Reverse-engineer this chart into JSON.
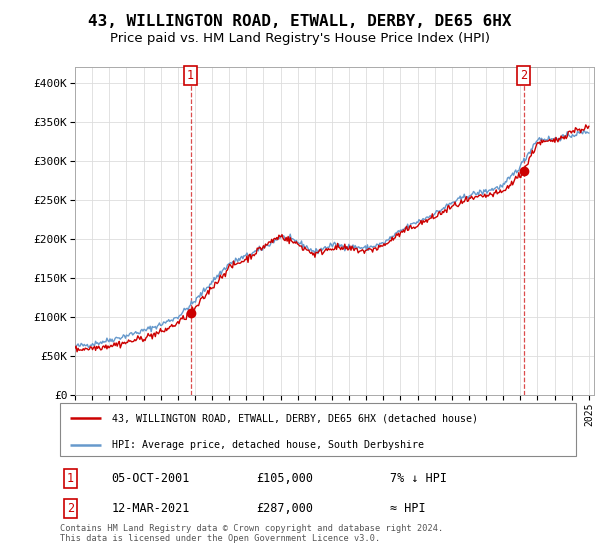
{
  "title": "43, WILLINGTON ROAD, ETWALL, DERBY, DE65 6HX",
  "subtitle": "Price paid vs. HM Land Registry's House Price Index (HPI)",
  "title_fontsize": 11.5,
  "subtitle_fontsize": 9.5,
  "ylabel_ticks": [
    "£0",
    "£50K",
    "£100K",
    "£150K",
    "£200K",
    "£250K",
    "£300K",
    "£350K",
    "£400K"
  ],
  "ytick_values": [
    0,
    50000,
    100000,
    150000,
    200000,
    250000,
    300000,
    350000,
    400000
  ],
  "ylim": [
    0,
    420000
  ],
  "xlim_start": 1995.3,
  "xlim_end": 2025.3,
  "background_color": "#ffffff",
  "grid_color": "#dddddd",
  "hpi_color": "#6699cc",
  "price_color": "#cc0000",
  "marker1_date": 2001.75,
  "marker1_price": 105000,
  "marker2_date": 2021.19,
  "marker2_price": 287000,
  "legend_label_price": "43, WILLINGTON ROAD, ETWALL, DERBY, DE65 6HX (detached house)",
  "legend_label_hpi": "HPI: Average price, detached house, South Derbyshire",
  "table_row1_num": "1",
  "table_row1_date": "05-OCT-2001",
  "table_row1_price": "£105,000",
  "table_row1_rel": "7% ↓ HPI",
  "table_row2_num": "2",
  "table_row2_date": "12-MAR-2021",
  "table_row2_price": "£287,000",
  "table_row2_rel": "≈ HPI",
  "footnote": "Contains HM Land Registry data © Crown copyright and database right 2024.\nThis data is licensed under the Open Government Licence v3.0.",
  "xtick_years": [
    1995,
    1996,
    1997,
    1998,
    1999,
    2000,
    2001,
    2002,
    2003,
    2004,
    2005,
    2006,
    2007,
    2008,
    2009,
    2010,
    2011,
    2012,
    2013,
    2014,
    2015,
    2016,
    2017,
    2018,
    2019,
    2020,
    2021,
    2022,
    2023,
    2024,
    2025
  ],
  "hpi_anchors_t": [
    1995.0,
    1996.0,
    1997.0,
    1998.0,
    1999.0,
    2000.0,
    2001.0,
    2002.0,
    2003.0,
    2004.0,
    2005.0,
    2006.0,
    2007.0,
    2008.0,
    2009.0,
    2010.0,
    2011.0,
    2012.0,
    2013.0,
    2014.0,
    2015.0,
    2016.0,
    2017.0,
    2018.0,
    2019.0,
    2020.0,
    2021.0,
    2022.0,
    2023.0,
    2024.0,
    2025.0
  ],
  "hpi_anchors_v": [
    62000,
    65000,
    70000,
    76000,
    82000,
    90000,
    100000,
    120000,
    145000,
    168000,
    178000,
    188000,
    203000,
    196000,
    183000,
    192000,
    190000,
    188000,
    194000,
    210000,
    222000,
    232000,
    246000,
    256000,
    261000,
    268000,
    293000,
    328000,
    328000,
    333000,
    338000
  ],
  "price_anchors_t": [
    1995.0,
    1996.0,
    1997.0,
    1998.0,
    1999.0,
    2000.0,
    2001.0,
    2001.75,
    2002.0,
    2003.0,
    2004.0,
    2005.0,
    2006.0,
    2007.0,
    2008.0,
    2009.0,
    2010.0,
    2011.0,
    2012.0,
    2013.0,
    2014.0,
    2015.0,
    2016.0,
    2017.0,
    2018.0,
    2019.0,
    2020.0,
    2021.19,
    2022.0,
    2023.0,
    2024.0,
    2025.0
  ],
  "price_anchors_v": [
    58000,
    60000,
    63000,
    67000,
    73000,
    80000,
    92000,
    105000,
    110000,
    138000,
    163000,
    174000,
    190000,
    204000,
    193000,
    180000,
    189000,
    187000,
    184000,
    191000,
    207000,
    218000,
    228000,
    241000,
    250000,
    255000,
    260000,
    287000,
    323000,
    325000,
    338000,
    343000
  ]
}
